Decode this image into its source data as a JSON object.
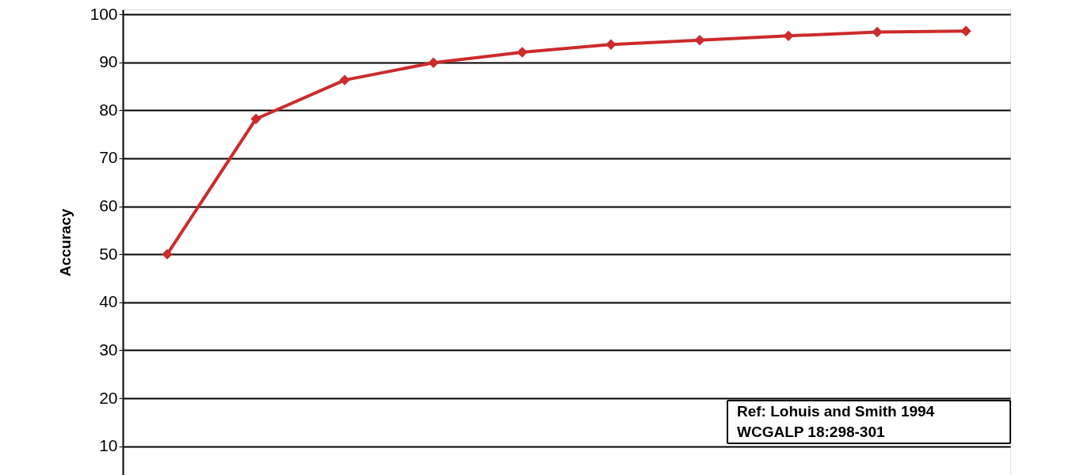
{
  "chart_data": {
    "type": "line",
    "ylabel": "Accuracy",
    "categories": [
      null,
      null,
      null,
      null,
      null,
      null,
      null,
      null,
      null,
      null
    ],
    "series": [
      {
        "color": "#cc2b2b",
        "values": [
          50,
          78.2,
          86.3,
          89.9,
          92.1,
          93.7,
          94.6,
          95.5,
          96.3,
          96.5
        ]
      }
    ],
    "ylim": [
      4,
      101
    ],
    "yticks": [
      10,
      20,
      30,
      40,
      50,
      60,
      70,
      80,
      90,
      100
    ],
    "grid": "y",
    "marker": "diamond",
    "line_style": "solid",
    "tick_labels": "y",
    "annotations": [
      "Ref: Lohuis and Smith 1994",
      "WCGALP 18:298-301"
    ]
  }
}
